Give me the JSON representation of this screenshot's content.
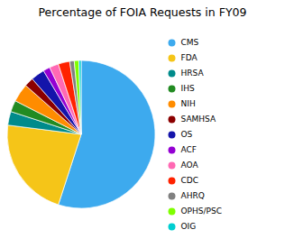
{
  "chart_data": {
    "type": "pie",
    "title": "Percentage of FOIA Requests in FY09",
    "categories": [
      "CMS",
      "FDA",
      "HRSA",
      "IHS",
      "NIH",
      "SAMHSA",
      "OS",
      "ACF",
      "AOA",
      "CDC",
      "AHRQ",
      "OPHS/PSC",
      "OIG"
    ],
    "values": [
      55,
      22,
      3,
      2.5,
      4,
      2,
      3,
      1.5,
      2,
      2.5,
      1,
      1,
      0.5
    ],
    "colors": [
      "#3DAAEE",
      "#F5C518",
      "#008B8B",
      "#228B22",
      "#FF8C00",
      "#8B0000",
      "#1414AA",
      "#9400D3",
      "#FF69B4",
      "#FF2200",
      "#808080",
      "#7FFF00",
      "#00CED1"
    ],
    "legend": "right"
  }
}
